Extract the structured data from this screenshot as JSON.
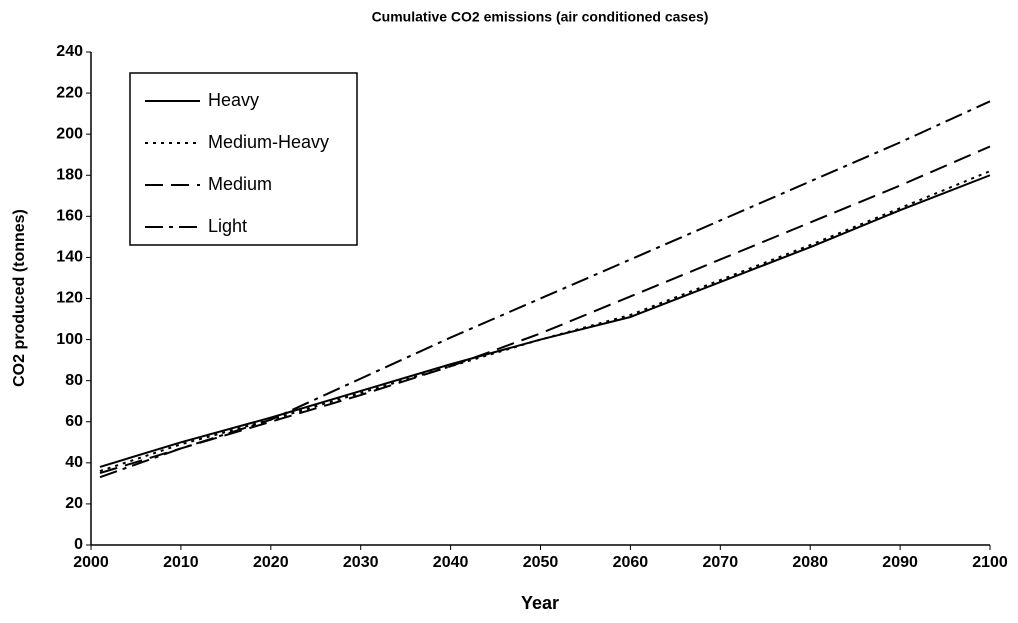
{
  "chart_data": {
    "type": "line",
    "title": "Cumulative CO2 emissions (air conditioned cases)",
    "xlabel": "Year",
    "ylabel": "CO2 produced (tonnes)",
    "x": [
      2001,
      2010,
      2020,
      2030,
      2040,
      2050,
      2060,
      2070,
      2080,
      2090,
      2100
    ],
    "series": [
      {
        "name": "Heavy",
        "color": "#000000",
        "dash": "solid",
        "values": [
          38,
          50,
          62,
          75,
          88,
          100,
          111,
          128,
          145,
          163,
          180
        ]
      },
      {
        "name": "Medium-Heavy",
        "color": "#000000",
        "dash": "dotted",
        "values": [
          36,
          49,
          61,
          74,
          87,
          100,
          112,
          129,
          146,
          164,
          182
        ]
      },
      {
        "name": "Medium",
        "color": "#000000",
        "dash": "dashed",
        "values": [
          35,
          47,
          60,
          73,
          87,
          103,
          121,
          139,
          157,
          175,
          194
        ]
      },
      {
        "name": "Light",
        "color": "#000000",
        "dash": "dashdot",
        "values": [
          33,
          47,
          61,
          81,
          101,
          120,
          139,
          158,
          177,
          196,
          216
        ]
      }
    ],
    "xlim": [
      2000,
      2100
    ],
    "xticks": [
      2000,
      2010,
      2020,
      2030,
      2040,
      2050,
      2060,
      2070,
      2080,
      2090,
      2100
    ],
    "ylim": [
      0,
      240
    ],
    "yticks": [
      0,
      20,
      40,
      60,
      80,
      100,
      120,
      140,
      160,
      180,
      200,
      220,
      240
    ],
    "grid": false,
    "legend": "upper left"
  }
}
